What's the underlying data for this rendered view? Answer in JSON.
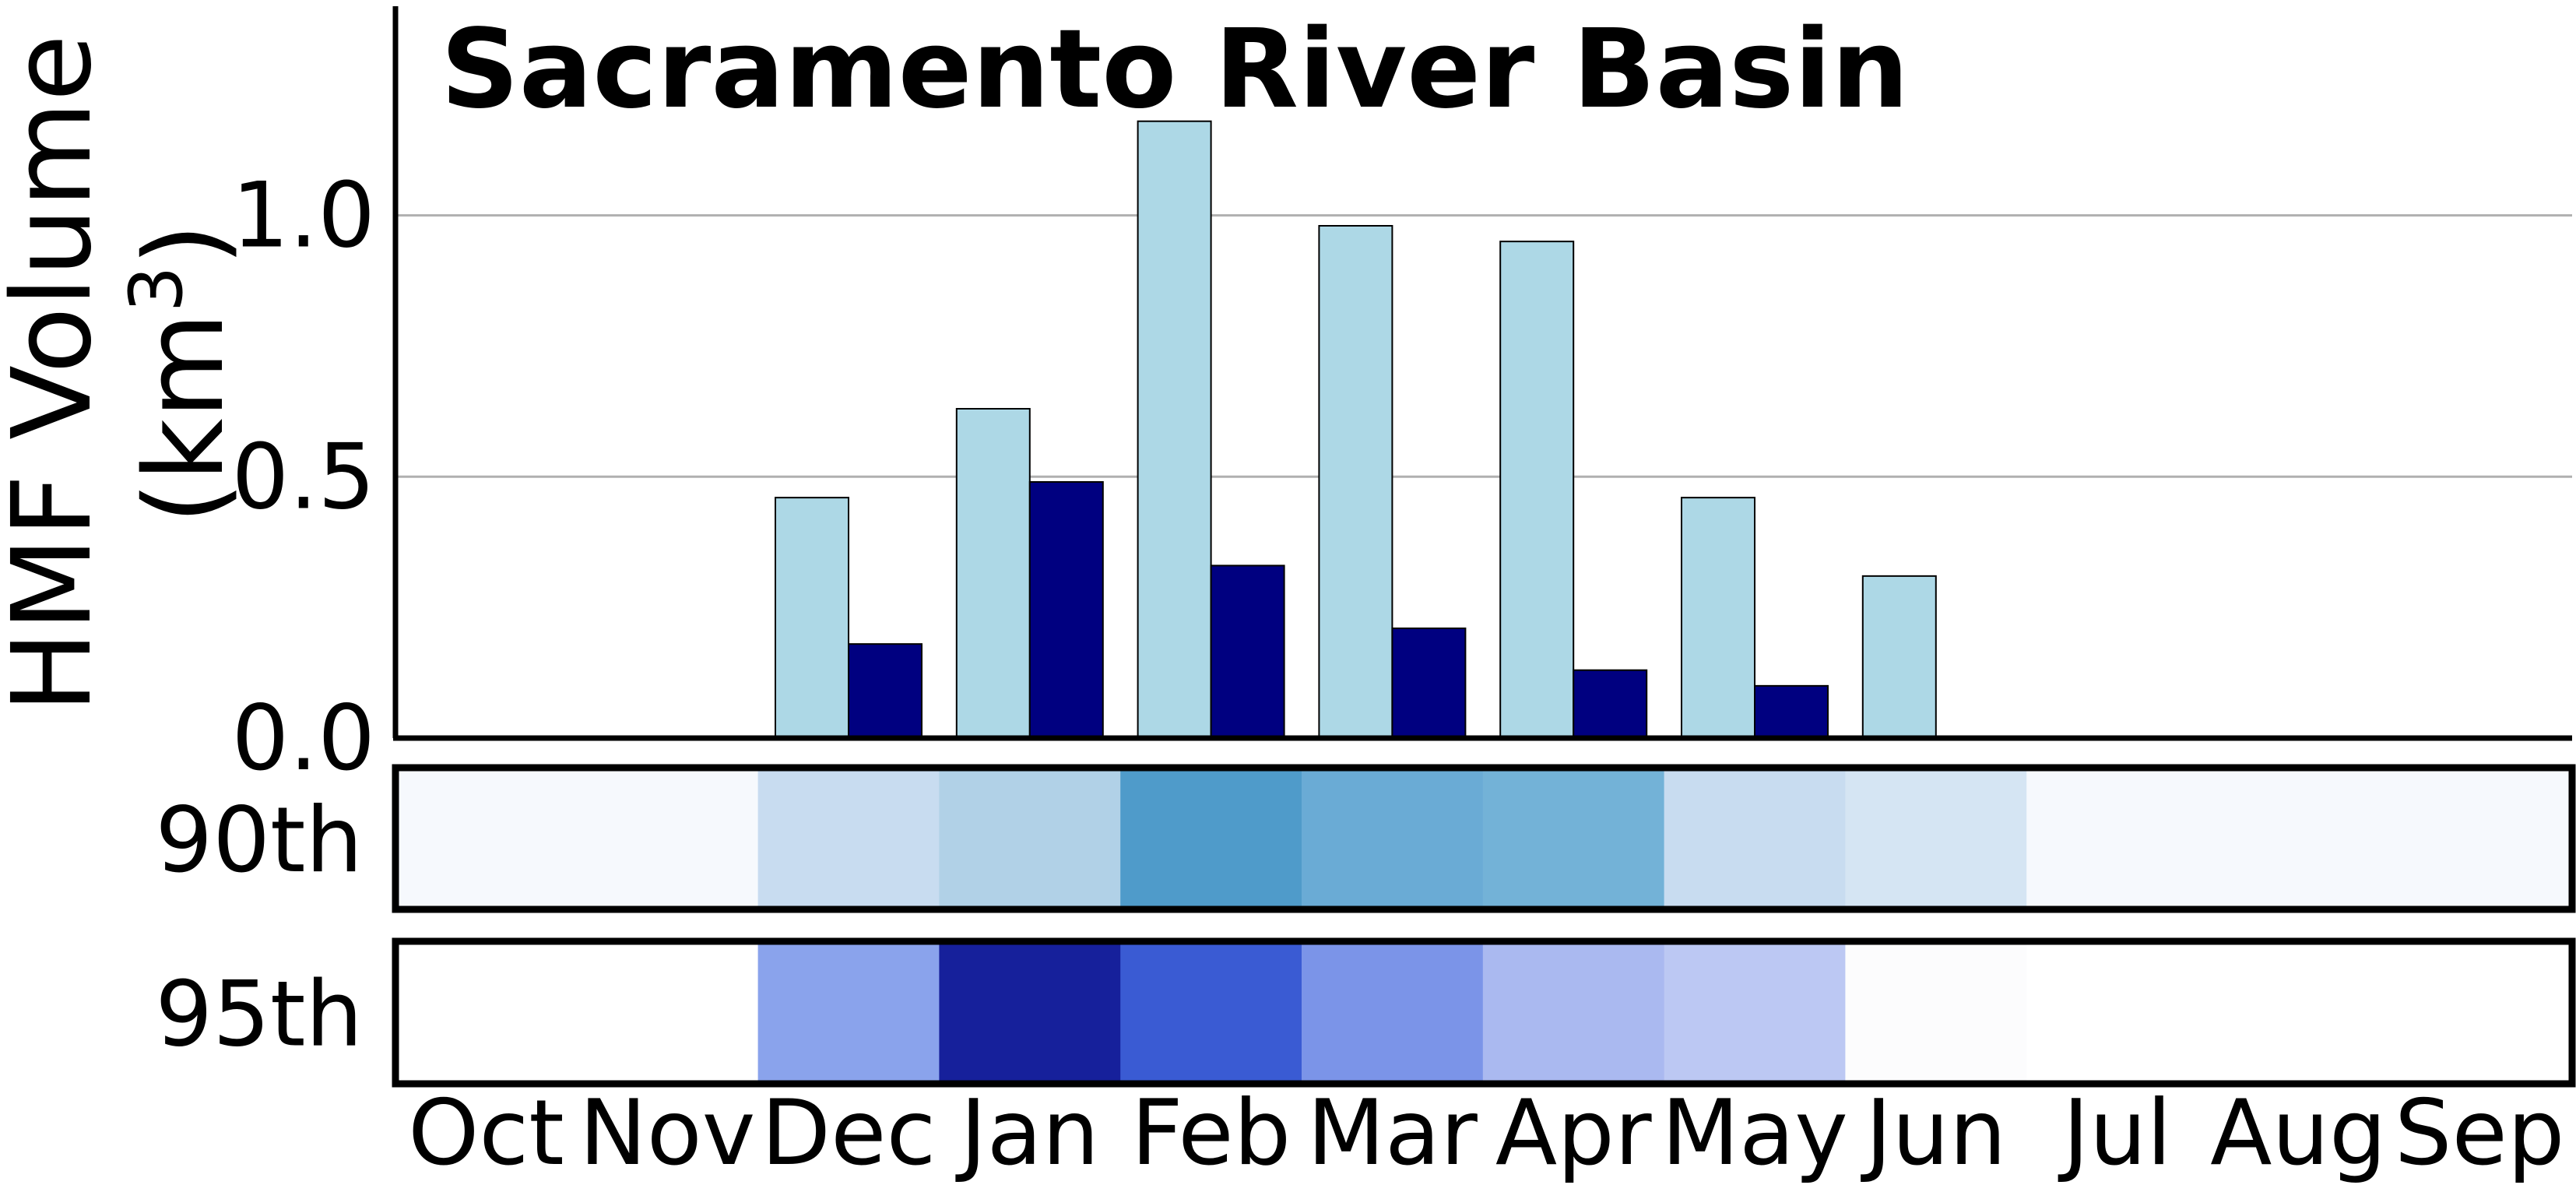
{
  "chart_data": {
    "type": "bar",
    "title": "Sacramento River Basin",
    "ylabel_line1": "HMF Volume",
    "ylabel_line2_prefix": "(km",
    "ylabel_superscript": "3",
    "ylabel_line2_suffix": ")",
    "categories": [
      "Oct",
      "Nov",
      "Dec",
      "Jan",
      "Feb",
      "Mar",
      "Apr",
      "May",
      "Jun",
      "Jul",
      "Aug",
      "Sep"
    ],
    "ylim": [
      0,
      1.4
    ],
    "yticks": [
      0.0,
      0.5,
      1.0
    ],
    "ytick_labels": [
      "0.0",
      "0.5",
      "1.0"
    ],
    "grid": "horizontal",
    "series": [
      {
        "color": "#add8e6",
        "values": [
          0,
          0,
          0.46,
          0.63,
          1.18,
          0.98,
          0.95,
          0.46,
          0.31,
          0,
          0,
          0
        ]
      },
      {
        "color": "#000080",
        "values": [
          0,
          0,
          0.18,
          0.49,
          0.33,
          0.21,
          0.13,
          0.1,
          0,
          0,
          0,
          0
        ]
      }
    ],
    "heatmap_rows": [
      {
        "label": "90th",
        "colors": [
          "#f6f9fd",
          "#f6f9fd",
          "#c8dcf0",
          "#b1d1e7",
          "#4f9bca",
          "#6aabd5",
          "#73b2d7",
          "#c8dcf0",
          "#d5e5f3",
          "#f6f9fd",
          "#f6f9fd",
          "#f6f9fd"
        ]
      },
      {
        "label": "95th",
        "colors": [
          "#ffffff",
          "#ffffff",
          "#8aa3ec",
          "#16209b",
          "#3a5bd3",
          "#7b94e8",
          "#aab9f0",
          "#bcc8f3",
          "#fcfcfd",
          "#ffffff",
          "#ffffff",
          "#ffffff"
        ]
      }
    ]
  }
}
